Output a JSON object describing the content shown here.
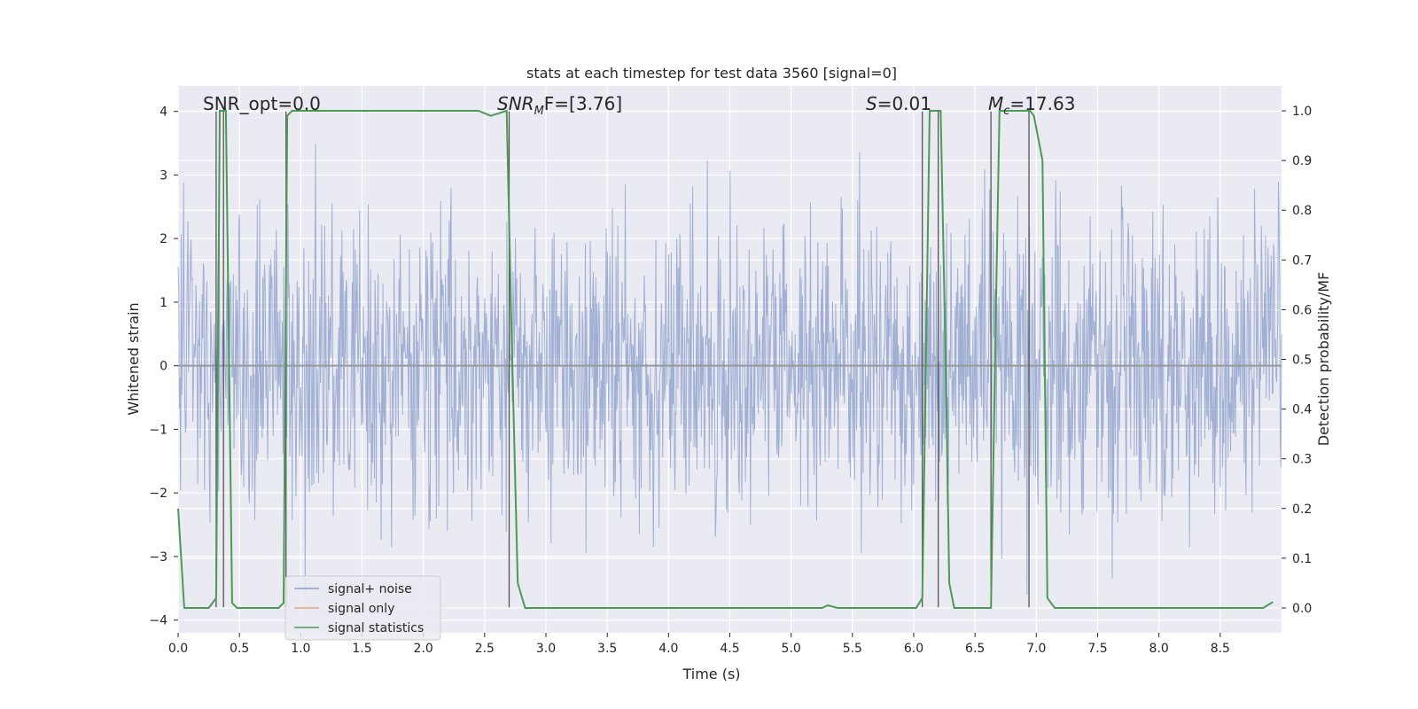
{
  "chart_data": {
    "type": "line",
    "title": "stats at each timestep for test data 3560 [signal=0]",
    "xlabel": "Time (s)",
    "ylabel": "Whitened strain",
    "y2label": "Detection probability/MF",
    "xlim": [
      0.0,
      9.0
    ],
    "ylim": [
      -4.2,
      4.4
    ],
    "y2lim": [
      -0.05,
      1.05
    ],
    "xticks": [
      "0.0",
      "0.5",
      "1.0",
      "1.5",
      "2.0",
      "2.5",
      "3.0",
      "3.5",
      "4.0",
      "4.5",
      "5.0",
      "5.5",
      "6.0",
      "6.5",
      "7.0",
      "7.5",
      "8.0",
      "8.5"
    ],
    "yticks": [
      "−4",
      "−3",
      "−2",
      "−1",
      "0",
      "1",
      "2",
      "3",
      "4"
    ],
    "y2ticks": [
      "0.0",
      "0.1",
      "0.2",
      "0.3",
      "0.4",
      "0.5",
      "0.6",
      "0.7",
      "0.8",
      "0.9",
      "1.0"
    ],
    "annotations": {
      "snr_opt": "SNR_opt=0.0",
      "snr_mf_main": "SNR",
      "snr_mf_sub": "M",
      "snr_mf_rest": "F=[3.76]",
      "s_main": "S",
      "s_rest": "=0.01",
      "mc_main": "M",
      "mc_sub": "c",
      "mc_rest": "=17.63"
    },
    "legend": {
      "position": "lower-left",
      "entries": [
        "signal+ noise",
        "signal only",
        "signal statistics"
      ]
    },
    "colors": {
      "noise": "#8da0cb",
      "signal": "#e8a27c",
      "statistics": "#4c9a55",
      "vlines": "#555555",
      "background": "#eaeaf2"
    },
    "series": [
      {
        "name": "signal statistics",
        "axis": "right",
        "x": [
          0.0,
          0.05,
          0.25,
          0.31,
          0.34,
          0.36,
          0.39,
          0.44,
          0.48,
          0.82,
          0.86,
          0.89,
          0.93,
          1.0,
          1.9,
          2.45,
          2.55,
          2.68,
          2.72,
          2.77,
          2.83,
          2.95,
          3.93,
          4.0,
          5.25,
          5.3,
          5.38,
          6.02,
          6.07,
          6.13,
          6.22,
          6.26,
          6.29,
          6.33,
          6.63,
          6.67,
          6.7,
          6.95,
          6.98,
          7.05,
          7.09,
          7.15,
          8.85,
          8.93
        ],
        "values": [
          0.2,
          0.0,
          0.0,
          0.02,
          1.0,
          1.0,
          1.0,
          0.01,
          0.0,
          0.0,
          0.01,
          0.99,
          1.0,
          1.0,
          1.0,
          1.0,
          0.99,
          1.0,
          0.55,
          0.05,
          0.0,
          0.0,
          0.0,
          0.0,
          0.0,
          0.005,
          0.0,
          0.0,
          0.02,
          1.0,
          1.0,
          0.5,
          0.05,
          0.0,
          0.0,
          0.6,
          1.0,
          1.0,
          0.99,
          0.9,
          0.02,
          0.0,
          0.0,
          0.012
        ]
      },
      {
        "name": "signal only",
        "axis": "left",
        "constant": 0.0
      },
      {
        "name": "signal+ noise",
        "axis": "left",
        "note": "dense Gaussian noise trace, std about 1.1, peaks near +/-3.5"
      }
    ],
    "vlines_x": [
      0.31,
      0.37,
      0.88,
      2.7,
      6.07,
      6.2,
      6.63,
      6.94
    ]
  }
}
